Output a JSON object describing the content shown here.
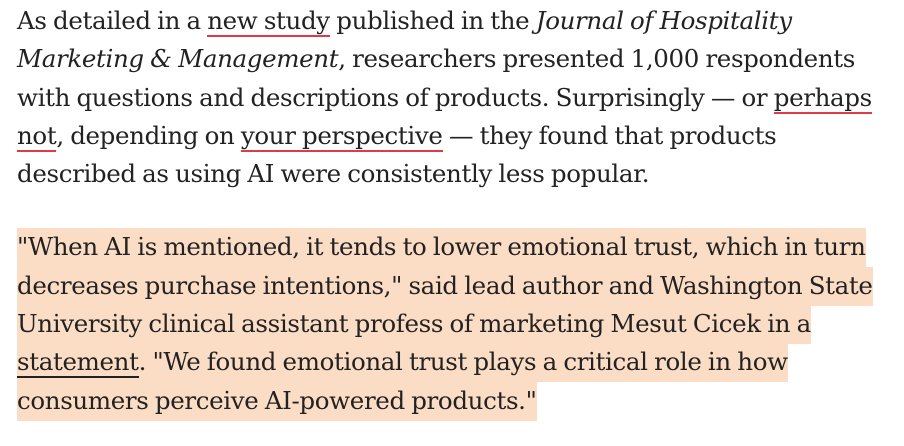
{
  "article": {
    "paragraph1": {
      "t1": "As detailed in a ",
      "link_new_study": "new study",
      "t2": " published in the ",
      "journal": "Journal of Hospitality Marketing & Management",
      "t3": ", researchers presented 1,000 respondents with questions and descriptions of products. Surprisingly — or ",
      "link_perhaps_not": "perhaps not",
      "t4": ", depending on ",
      "link_your_perspective": "your perspective",
      "t5": " — they found that products described as using AI were consistently less popular."
    },
    "paragraph2": {
      "t1": "\"When AI is mentioned, it tends to lower emotional trust, which in turn decreases purchase intentions,\" said lead author and Washington State University clinical assistant profess of marketing Mesut Cicek in a ",
      "link_statement": "statement",
      "t2": ". \"We found emotional trust plays a critical role in how consumers perceive AI-powered products.\""
    }
  },
  "colors": {
    "highlight": "#fbdcc4",
    "link_underline": "#e03a4a",
    "text": "#222222"
  }
}
